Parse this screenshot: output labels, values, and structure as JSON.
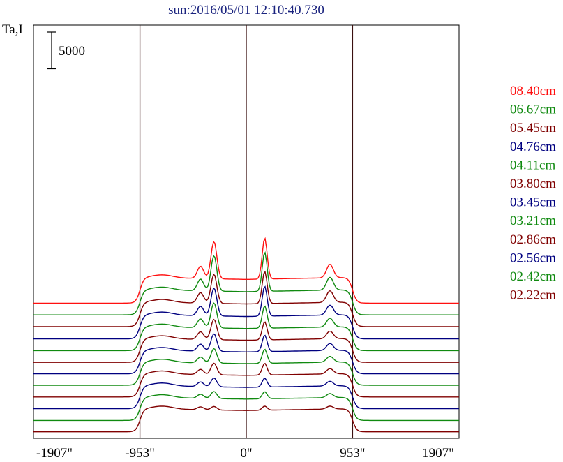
{
  "title": "sun:2016/05/01 12:10:40.730",
  "y_axis_label": "Ta,I",
  "scale_bar_label": "5000",
  "colors": {
    "title": "#1a237e",
    "frame": "#000000",
    "guide": "#3a1010",
    "red": "#ff1010",
    "green": "#108a10",
    "maroon": "#800000",
    "blue": "#000080"
  },
  "chart_data": {
    "type": "line",
    "title": "sun:2016/05/01 12:10:40.730",
    "ylabel": "Ta,I",
    "x_unit": "arcsec",
    "xlim": [
      -1907,
      1907
    ],
    "x_ticks": [
      {
        "value": -1907,
        "label": "-1907\""
      },
      {
        "value": -953,
        "label": "-953\""
      },
      {
        "value": 0,
        "label": "0\""
      },
      {
        "value": 953,
        "label": "953\""
      },
      {
        "value": 1907,
        "label": "1907\""
      }
    ],
    "vertical_guides": [
      -953,
      0,
      953
    ],
    "scale_bar_ta": 5000,
    "legend_position": "right",
    "series": [
      {
        "name": "08.40cm",
        "color": "#ff1010",
        "baseline": 16900,
        "disk": 4400,
        "peak_left": 6400,
        "peak_right": 7000,
        "side_left": 2100,
        "side_right": 2300
      },
      {
        "name": "06.67cm",
        "color": "#108a10",
        "baseline": 14900,
        "disk": 4300,
        "peak_left": 6100,
        "peak_right": 6700,
        "side_left": 2000,
        "side_right": 2200
      },
      {
        "name": "05.45cm",
        "color": "#800000",
        "baseline": 12900,
        "disk": 4200,
        "peak_left": 5000,
        "peak_right": 5500,
        "side_left": 1800,
        "side_right": 2000
      },
      {
        "name": "04.76cm",
        "color": "#000080",
        "baseline": 10800,
        "disk": 4150,
        "peak_left": 4800,
        "peak_right": 5100,
        "side_left": 1600,
        "side_right": 1700
      },
      {
        "name": "04.11cm",
        "color": "#108a10",
        "baseline": 8800,
        "disk": 4100,
        "peak_left": 4300,
        "peak_right": 3800,
        "side_left": 1500,
        "side_right": 1500
      },
      {
        "name": "03.80cm",
        "color": "#800000",
        "baseline": 6800,
        "disk": 4100,
        "peak_left": 3500,
        "peak_right": 3100,
        "side_left": 1300,
        "side_right": 1300
      },
      {
        "name": "03.45cm",
        "color": "#000080",
        "baseline": 4850,
        "disk": 4050,
        "peak_left": 3000,
        "peak_right": 2800,
        "side_left": 1200,
        "side_right": 1200
      },
      {
        "name": "03.21cm",
        "color": "#108a10",
        "baseline": 2900,
        "disk": 4000,
        "peak_left": 2500,
        "peak_right": 2400,
        "side_left": 1000,
        "side_right": 1000
      },
      {
        "name": "02.86cm",
        "color": "#800000",
        "baseline": 900,
        "disk": 4000,
        "peak_left": 2000,
        "peak_right": 2000,
        "side_left": 900,
        "side_right": 900
      },
      {
        "name": "02.56cm",
        "color": "#000080",
        "baseline": -1100,
        "disk": 3950,
        "peak_left": 1500,
        "peak_right": 1500,
        "side_left": 800,
        "side_right": 800
      },
      {
        "name": "02.42cm",
        "color": "#108a10",
        "baseline": -3100,
        "disk": 3950,
        "peak_left": 1200,
        "peak_right": 1200,
        "side_left": 700,
        "side_right": 700
      },
      {
        "name": "02.22cm",
        "color": "#800000",
        "baseline": -5050,
        "disk": 3950,
        "peak_left": 600,
        "peak_right": 700,
        "side_left": 500,
        "side_right": 500
      }
    ]
  }
}
